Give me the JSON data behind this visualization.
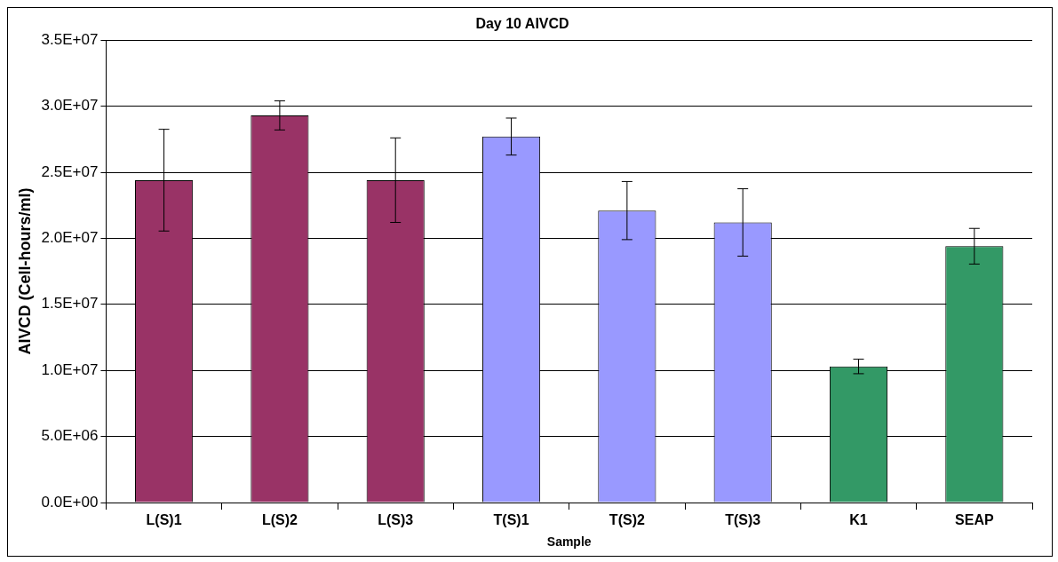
{
  "chart_data": {
    "type": "bar",
    "title": "Day 10 AIVCD",
    "xlabel": "Sample",
    "ylabel": "AIVCD (Cell-hours/ml)",
    "categories": [
      "L(S)1",
      "L(S)2",
      "L(S)3",
      "T(S)1",
      "T(S)2",
      "T(S)3",
      "K1",
      "SEAP"
    ],
    "values": [
      24400000,
      29300000,
      24400000,
      27700000,
      22100000,
      21200000,
      10300000,
      19400000
    ],
    "errors": [
      3850000,
      1100000,
      3200000,
      1400000,
      2200000,
      2550000,
      550000,
      1350000
    ],
    "colors": [
      "#993366",
      "#993366",
      "#993366",
      "#9999ff",
      "#9999ff",
      "#9999ff",
      "#339966",
      "#339966"
    ],
    "ylim": [
      0,
      35000000
    ],
    "yticks": [
      {
        "value": 0,
        "label": "0.0E+00"
      },
      {
        "value": 5000000,
        "label": "5.0E+06"
      },
      {
        "value": 10000000,
        "label": "1.0E+07"
      },
      {
        "value": 15000000,
        "label": "1.5E+07"
      },
      {
        "value": 20000000,
        "label": "2.0E+07"
      },
      {
        "value": 25000000,
        "label": "2.5E+07"
      },
      {
        "value": 30000000,
        "label": "3.0E+07"
      },
      {
        "value": 35000000,
        "label": "3.5E+07"
      }
    ],
    "grid": "y",
    "legend": false
  }
}
